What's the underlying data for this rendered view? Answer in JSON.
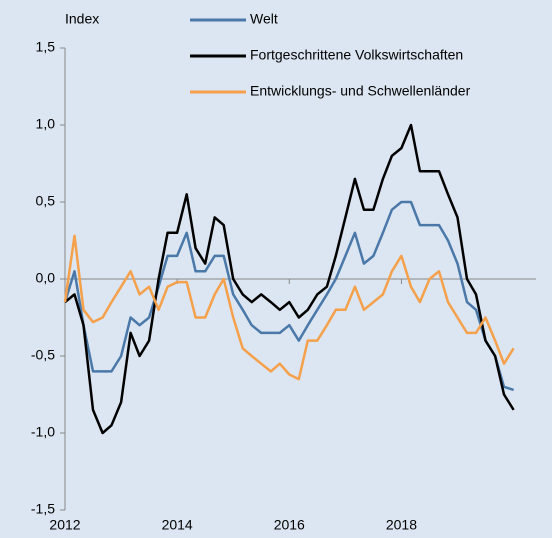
{
  "chart_data": {
    "type": "line",
    "ylabel": "Index",
    "x": [
      2012,
      2012.17,
      2012.33,
      2012.5,
      2012.67,
      2012.83,
      2013,
      2013.17,
      2013.33,
      2013.5,
      2013.67,
      2013.83,
      2014,
      2014.17,
      2014.33,
      2014.5,
      2014.67,
      2014.83,
      2015,
      2015.17,
      2015.33,
      2015.5,
      2015.67,
      2015.83,
      2016,
      2016.17,
      2016.33,
      2016.5,
      2016.67,
      2016.83,
      2017,
      2017.17,
      2017.33,
      2017.5,
      2017.67,
      2017.83,
      2018,
      2018.17,
      2018.33,
      2018.5,
      2018.67,
      2018.83,
      2019,
      2019.17,
      2019.33,
      2019.5,
      2019.67,
      2019.83,
      2020
    ],
    "series": [
      {
        "name": "Welt",
        "color": "#4a78a8",
        "values": [
          -0.15,
          0.05,
          -0.3,
          -0.6,
          -0.6,
          -0.6,
          -0.5,
          -0.25,
          -0.3,
          -0.25,
          -0.05,
          0.15,
          0.15,
          0.3,
          0.05,
          0.05,
          0.15,
          0.15,
          -0.1,
          -0.2,
          -0.3,
          -0.35,
          -0.35,
          -0.35,
          -0.3,
          -0.4,
          -0.3,
          -0.2,
          -0.1,
          0.0,
          0.15,
          0.3,
          0.1,
          0.15,
          0.3,
          0.45,
          0.5,
          0.5,
          0.35,
          0.35,
          0.35,
          0.25,
          0.1,
          -0.15,
          -0.2,
          -0.4,
          -0.5,
          -0.7,
          -0.72
        ]
      },
      {
        "name": "Fortgeschrittene Volkswirtschaften",
        "color": "#000000",
        "values": [
          -0.15,
          -0.1,
          -0.3,
          -0.85,
          -1.0,
          -0.95,
          -0.8,
          -0.35,
          -0.5,
          -0.4,
          0.0,
          0.3,
          0.3,
          0.55,
          0.2,
          0.1,
          0.4,
          0.35,
          0.0,
          -0.1,
          -0.15,
          -0.1,
          -0.15,
          -0.2,
          -0.15,
          -0.25,
          -0.2,
          -0.1,
          -0.05,
          0.15,
          0.4,
          0.65,
          0.45,
          0.45,
          0.65,
          0.8,
          0.85,
          1.0,
          0.7,
          0.7,
          0.7,
          0.55,
          0.4,
          0.0,
          -0.1,
          -0.4,
          -0.5,
          -0.75,
          -0.85
        ]
      },
      {
        "name": "Entwicklungs- und Schwellenländer",
        "color": "#f5a04a",
        "values": [
          -0.15,
          0.28,
          -0.2,
          -0.28,
          -0.25,
          -0.15,
          -0.05,
          0.05,
          -0.1,
          -0.05,
          -0.2,
          -0.05,
          -0.02,
          -0.02,
          -0.25,
          -0.25,
          -0.1,
          0.0,
          -0.25,
          -0.45,
          -0.5,
          -0.55,
          -0.6,
          -0.55,
          -0.62,
          -0.65,
          -0.4,
          -0.4,
          -0.3,
          -0.2,
          -0.2,
          -0.05,
          -0.2,
          -0.15,
          -0.1,
          0.05,
          0.15,
          -0.05,
          -0.15,
          0.0,
          0.05,
          -0.15,
          -0.25,
          -0.35,
          -0.35,
          -0.25,
          -0.4,
          -0.55,
          -0.45
        ]
      }
    ],
    "xlim": [
      2012,
      2020.4
    ],
    "xticks": [
      2012,
      2014,
      2016,
      2018
    ],
    "ylim": [
      -1.5,
      1.5
    ],
    "yticks": [
      {
        "value": -1.5,
        "label": "-1,5"
      },
      {
        "value": -1.0,
        "label": "-1,0"
      },
      {
        "value": -0.5,
        "label": "-0,5"
      },
      {
        "value": 0,
        "label": "0,0"
      },
      {
        "value": 0.5,
        "label": "0,5"
      },
      {
        "value": 1.0,
        "label": "1,0"
      },
      {
        "value": 1.5,
        "label": "1,5"
      }
    ],
    "legend": "top-right"
  }
}
